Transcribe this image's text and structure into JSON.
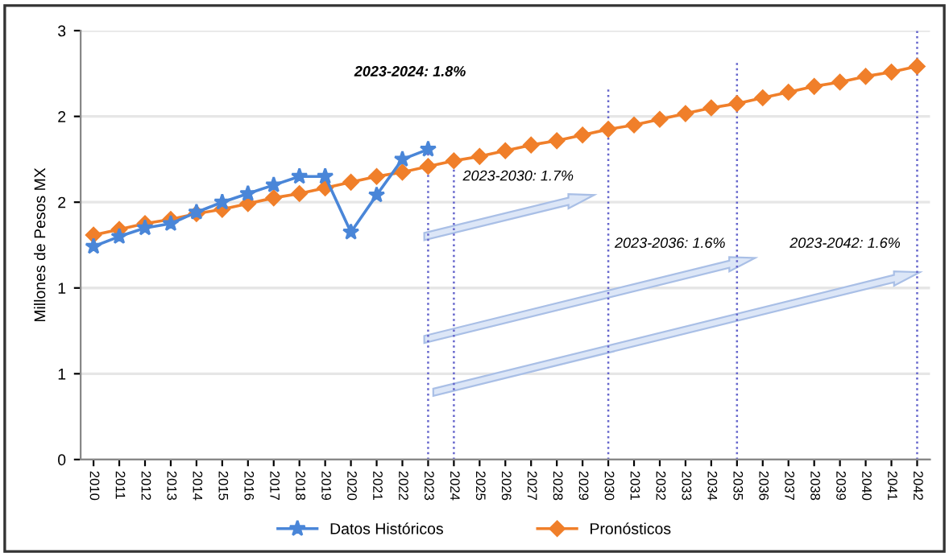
{
  "chart_data": {
    "type": "line",
    "ylabel": "Millones de Pesos MX",
    "categories": [
      "2010",
      "2011",
      "2012",
      "2013",
      "2014",
      "2015",
      "2016",
      "2017",
      "2018",
      "2019",
      "2020",
      "2021",
      "2022",
      "2023",
      "2024",
      "2025",
      "2026",
      "2027",
      "2028",
      "2029",
      "2030",
      "2031",
      "2032",
      "2033",
      "2034",
      "2035",
      "2036",
      "2037",
      "2038",
      "2039",
      "2040",
      "2041",
      "2042"
    ],
    "series": [
      {
        "name": "Datos Históricos",
        "color": "#4a86d8",
        "marker": "star",
        "values": [
          1.49,
          1.56,
          1.62,
          1.65,
          1.73,
          1.8,
          1.86,
          1.92,
          1.98,
          1.98,
          1.59,
          1.85,
          2.1,
          2.17,
          null,
          null,
          null,
          null,
          null,
          null,
          null,
          null,
          null,
          null,
          null,
          null,
          null,
          null,
          null,
          null,
          null,
          null,
          null
        ]
      },
      {
        "name": "Pronósticos",
        "color": "#f07f2a",
        "marker": "diamond",
        "values": [
          1.57,
          1.61,
          1.65,
          1.68,
          1.72,
          1.75,
          1.79,
          1.83,
          1.86,
          1.9,
          1.94,
          1.98,
          2.01,
          2.05,
          2.09,
          2.12,
          2.16,
          2.2,
          2.23,
          2.27,
          2.31,
          2.34,
          2.38,
          2.42,
          2.46,
          2.49,
          2.53,
          2.57,
          2.61,
          2.64,
          2.68,
          2.71,
          2.75
        ]
      }
    ],
    "ylim": [
      0,
      3
    ],
    "yticks": [
      0,
      {
        "value": 0.6,
        "label": "1"
      },
      {
        "value": 1.2,
        "label": "1"
      },
      {
        "value": 1.8,
        "label": "2"
      },
      {
        "value": 2.4,
        "label": "2"
      },
      3
    ],
    "grid": "y",
    "legend": "bottom",
    "line_style": "solid",
    "ref_lines": [
      {
        "axis": "x",
        "value": "2023",
        "color": "#6666cc",
        "line_style": "dotted"
      },
      {
        "axis": "x",
        "value": "2024",
        "color": "#6666cc",
        "line_style": "dotted"
      },
      {
        "axis": "x",
        "value": "2030",
        "color": "#6666cc",
        "line_style": "dotted"
      },
      {
        "axis": "x",
        "value": "2035",
        "color": "#6666cc",
        "line_style": "dotted"
      },
      {
        "axis": "x",
        "value": "2042",
        "color": "#6666cc",
        "line_style": "dotted"
      }
    ],
    "annotations": [
      "2023-2024: 1.8%",
      "2023-2030: 1.7%",
      "2023-2036: 1.6%",
      "2023-2042: 1.6%"
    ]
  }
}
